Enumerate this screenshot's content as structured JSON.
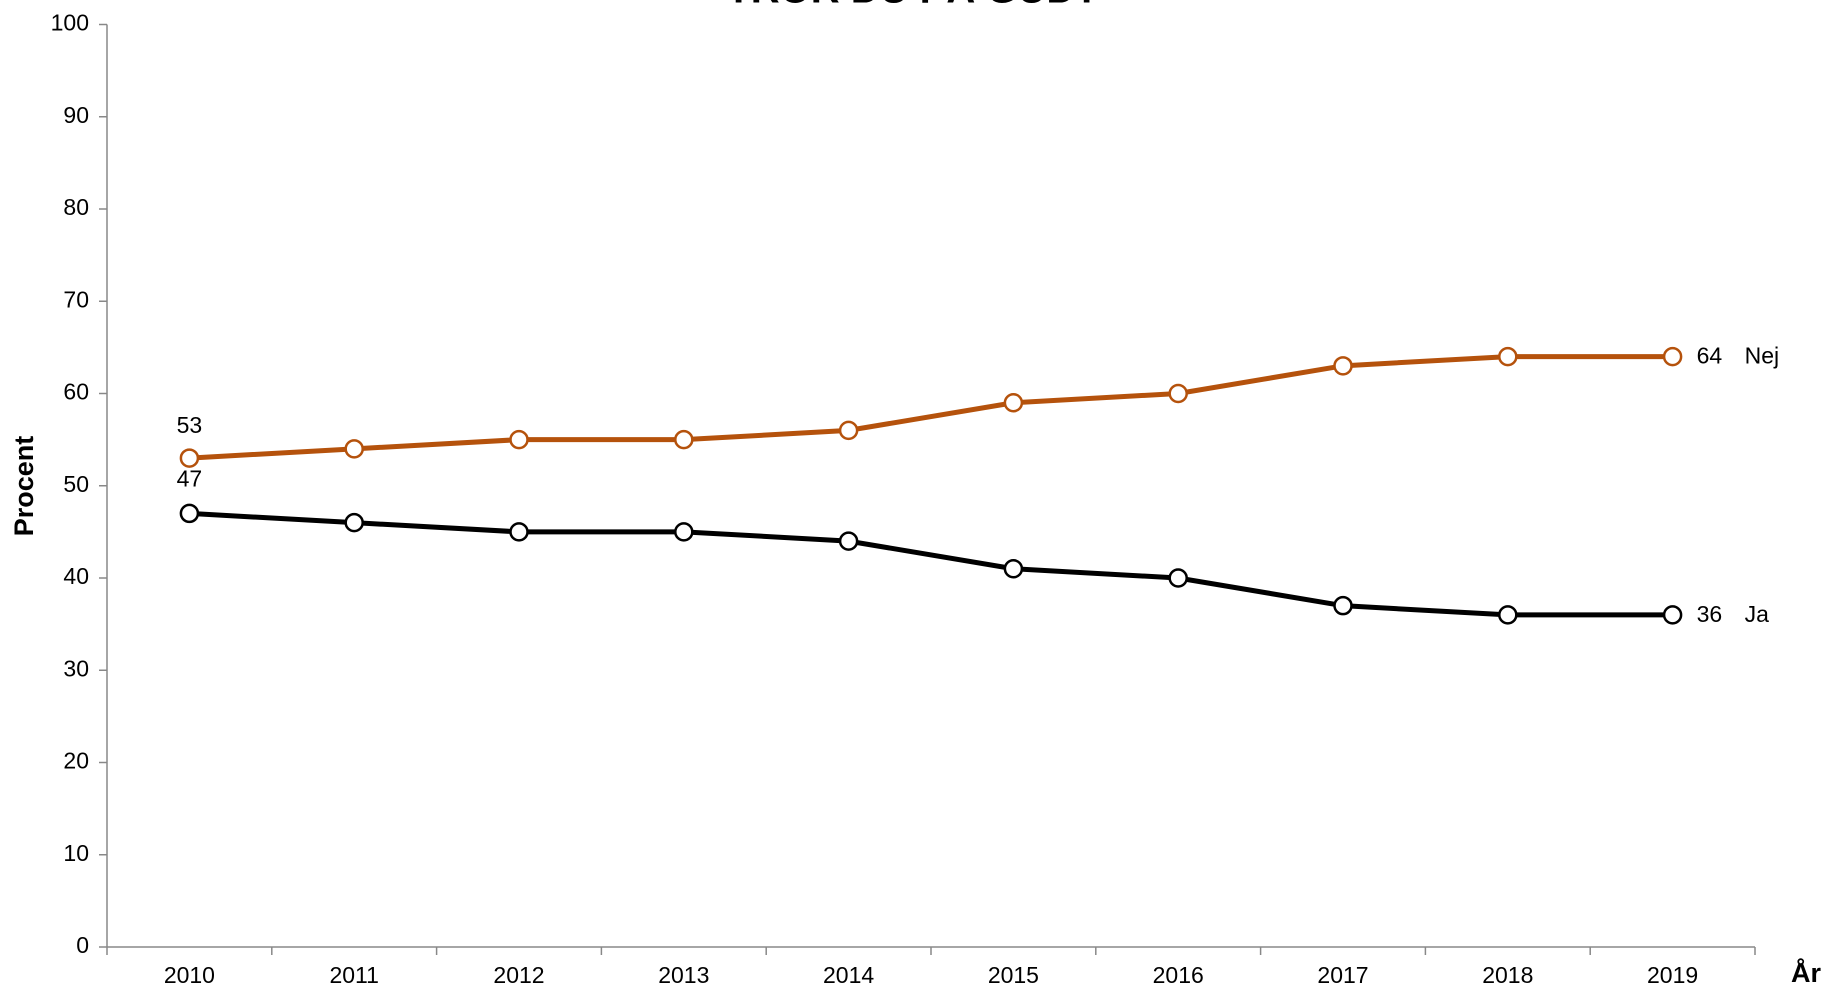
{
  "chart_data": {
    "type": "line",
    "title": "TROR DU PÅ GUD?",
    "x_label": "År",
    "y_label": "Procent",
    "categories": [
      "2010",
      "2011",
      "2012",
      "2013",
      "2014",
      "2015",
      "2016",
      "2017",
      "2018",
      "2019"
    ],
    "series": [
      {
        "name": "Nej",
        "color": "#b5520c",
        "values": [
          53,
          54,
          55,
          55,
          56,
          59,
          60,
          63,
          64,
          64
        ]
      },
      {
        "name": "Ja",
        "color": "#000000",
        "values": [
          47,
          46,
          45,
          45,
          44,
          41,
          40,
          37,
          36,
          36
        ]
      }
    ],
    "ylim": [
      0,
      100
    ],
    "yticks": [
      0,
      10,
      20,
      30,
      40,
      50,
      60,
      70,
      80,
      90,
      100
    ],
    "grid": false
  }
}
